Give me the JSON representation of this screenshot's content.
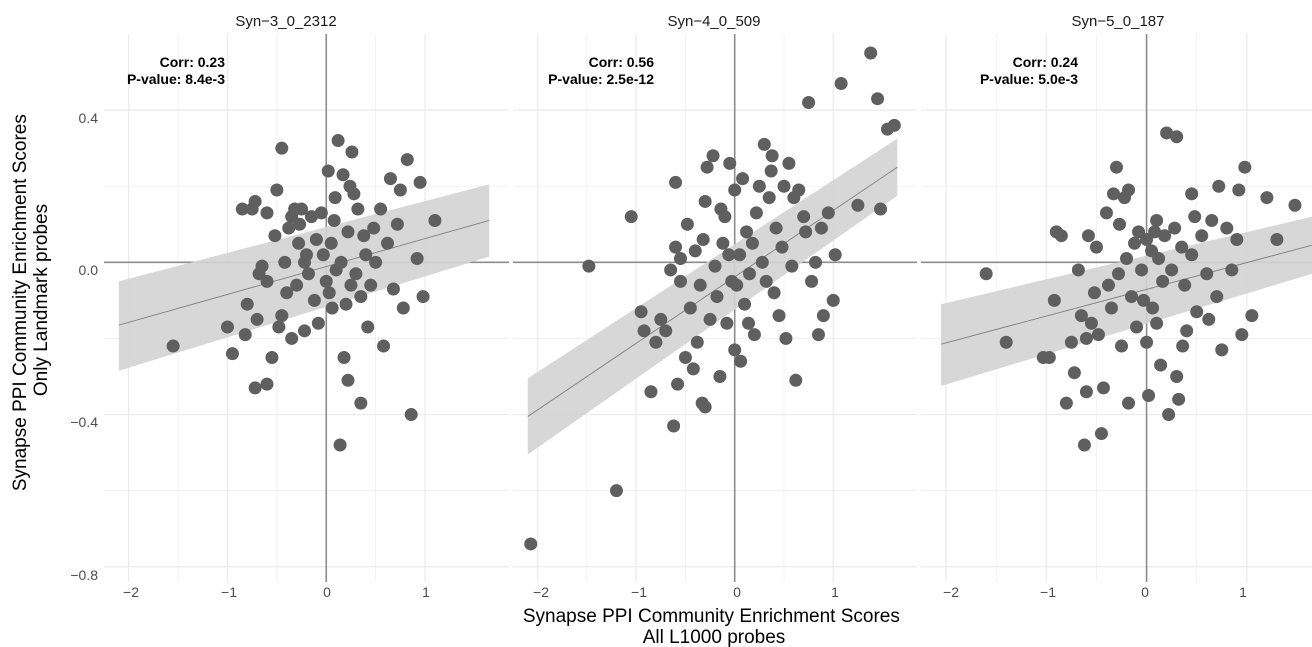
{
  "y_axis_title": [
    "Synapse PPI Community Enrichment Scores",
    "Only Landmark probes"
  ],
  "x_axis_title": [
    "Synapse PPI Community Enrichment Scores",
    "All L1000 probes"
  ],
  "colors": {
    "points": "#5f5f5f",
    "band": "#d3d3d3",
    "fit_line": "#7f7f7f",
    "grid": "#ebebeb",
    "zero_line": "#8c8c8c"
  },
  "chart_data": [
    {
      "type": "scatter",
      "panel": "Syn−3_0_2312",
      "annotation": [
        "Corr: 0.23",
        "P-value: 8.4e-3"
      ],
      "xlim": [
        -2.25,
        1.85
      ],
      "ylim": [
        -0.84,
        0.6
      ],
      "x_ticks": [
        -2,
        -1,
        0,
        1
      ],
      "x_tick_labels": [
        "−2",
        "−1",
        "0",
        "1"
      ],
      "y_ticks": [
        0.4,
        0.0,
        -0.4,
        -0.8
      ],
      "y_tick_labels": [
        "0.4",
        "0.0",
        "−0.4",
        "−0.8"
      ],
      "reference_lines": {
        "x": 0,
        "y": 0
      },
      "fit": {
        "x_range": [
          -2.1,
          1.65
        ],
        "y_start": -0.165,
        "y_end": 0.11,
        "band_low": [
          -0.285,
          0.015
        ],
        "band_high": [
          -0.05,
          0.205
        ]
      },
      "points": [
        [
          -1.55,
          -0.22
        ],
        [
          -0.95,
          -0.24
        ],
        [
          -1.0,
          -0.17
        ],
        [
          -0.82,
          -0.19
        ],
        [
          -0.72,
          -0.33
        ],
        [
          -0.6,
          -0.32
        ],
        [
          -0.55,
          -0.25
        ],
        [
          -0.85,
          0.14
        ],
        [
          -0.75,
          0.14
        ],
        [
          -0.72,
          0.16
        ],
        [
          -0.8,
          -0.11
        ],
        [
          -0.7,
          -0.15
        ],
        [
          -0.68,
          -0.03
        ],
        [
          -0.65,
          -0.01
        ],
        [
          -0.6,
          -0.05
        ],
        [
          -0.52,
          0.07
        ],
        [
          -0.5,
          0.19
        ],
        [
          -0.45,
          0.3
        ],
        [
          -0.48,
          -0.17
        ],
        [
          -0.45,
          -0.14
        ],
        [
          -0.42,
          0.0
        ],
        [
          -0.4,
          -0.08
        ],
        [
          -0.38,
          0.09
        ],
        [
          -0.35,
          0.12
        ],
        [
          -0.35,
          -0.2
        ],
        [
          -0.3,
          -0.06
        ],
        [
          -0.28,
          0.05
        ],
        [
          -0.27,
          0.1
        ],
        [
          -0.25,
          0.14
        ],
        [
          -0.22,
          -0.18
        ],
        [
          -0.2,
          0.02
        ],
        [
          -0.18,
          -0.03
        ],
        [
          -0.15,
          0.12
        ],
        [
          -0.12,
          -0.1
        ],
        [
          -0.1,
          0.06
        ],
        [
          -0.08,
          -0.16
        ],
        [
          -0.05,
          0.13
        ],
        [
          -0.03,
          0.02
        ],
        [
          0.0,
          -0.05
        ],
        [
          0.02,
          0.24
        ],
        [
          0.03,
          -0.08
        ],
        [
          0.05,
          0.05
        ],
        [
          0.08,
          0.11
        ],
        [
          0.1,
          -0.02
        ],
        [
          0.12,
          0.32
        ],
        [
          0.14,
          -0.48
        ],
        [
          0.15,
          0.0
        ],
        [
          0.17,
          0.23
        ],
        [
          0.18,
          -0.25
        ],
        [
          0.2,
          -0.11
        ],
        [
          0.22,
          0.08
        ],
        [
          0.24,
          0.2
        ],
        [
          0.25,
          -0.06
        ],
        [
          0.26,
          0.29
        ],
        [
          0.28,
          0.18
        ],
        [
          0.3,
          -0.03
        ],
        [
          0.32,
          0.14
        ],
        [
          0.35,
          -0.09
        ],
        [
          0.35,
          -0.37
        ],
        [
          0.38,
          0.07
        ],
        [
          0.4,
          0.02
        ],
        [
          0.42,
          -0.17
        ],
        [
          0.45,
          -0.06
        ],
        [
          0.48,
          0.09
        ],
        [
          0.5,
          0.0
        ],
        [
          0.55,
          0.14
        ],
        [
          0.58,
          -0.22
        ],
        [
          0.62,
          0.05
        ],
        [
          0.65,
          0.22
        ],
        [
          0.68,
          -0.07
        ],
        [
          0.72,
          0.1
        ],
        [
          0.75,
          0.19
        ],
        [
          0.78,
          -0.12
        ],
        [
          0.82,
          0.27
        ],
        [
          0.86,
          -0.4
        ],
        [
          0.92,
          0.01
        ],
        [
          0.95,
          0.21
        ],
        [
          0.98,
          -0.09
        ],
        [
          1.1,
          0.11
        ],
        [
          0.22,
          -0.31
        ],
        [
          -0.22,
          0.0
        ],
        [
          -0.32,
          0.14
        ],
        [
          0.06,
          -0.12
        ],
        [
          0.09,
          0.17
        ],
        [
          -0.6,
          0.13
        ]
      ]
    },
    {
      "type": "scatter",
      "panel": "Syn−4_0_509",
      "annotation": [
        "Corr: 0.56",
        "P-value: 2.5e-12"
      ],
      "xlim": [
        -2.25,
        1.85
      ],
      "ylim": [
        -0.84,
        0.6
      ],
      "x_ticks": [
        -2,
        -1,
        0,
        1
      ],
      "x_tick_labels": [
        "−2",
        "−1",
        "0",
        "1"
      ],
      "y_ticks": [
        0.4,
        0.0,
        -0.4,
        -0.8
      ],
      "y_tick_labels": [
        "0.4",
        "0.0",
        "−0.4",
        "−0.8"
      ],
      "reference_lines": {
        "x": 0,
        "y": 0
      },
      "fit": {
        "x_range": [
          -2.1,
          1.65
        ],
        "y_start": -0.405,
        "y_end": 0.25,
        "band_low": [
          -0.505,
          0.175
        ],
        "band_high": [
          -0.305,
          0.325
        ]
      },
      "points": [
        [
          -2.07,
          -0.74
        ],
        [
          -1.2,
          -0.6
        ],
        [
          -1.48,
          -0.01
        ],
        [
          -1.05,
          0.12
        ],
        [
          -0.85,
          -0.34
        ],
        [
          -0.92,
          -0.18
        ],
        [
          -0.95,
          -0.13
        ],
        [
          -0.8,
          -0.21
        ],
        [
          -0.75,
          -0.15
        ],
        [
          -0.7,
          -0.18
        ],
        [
          -0.62,
          -0.43
        ],
        [
          -0.6,
          0.21
        ],
        [
          -0.6,
          0.04
        ],
        [
          -0.58,
          -0.32
        ],
        [
          -0.55,
          -0.05
        ],
        [
          -0.55,
          0.01
        ],
        [
          -0.5,
          -0.25
        ],
        [
          -0.48,
          0.1
        ],
        [
          -0.45,
          -0.12
        ],
        [
          -0.42,
          -0.28
        ],
        [
          -0.4,
          0.03
        ],
        [
          -0.38,
          -0.21
        ],
        [
          -0.35,
          -0.06
        ],
        [
          -0.32,
          0.06
        ],
        [
          -0.3,
          -0.38
        ],
        [
          -0.3,
          0.16
        ],
        [
          -0.28,
          0.25
        ],
        [
          -0.25,
          -0.15
        ],
        [
          -0.22,
          0.28
        ],
        [
          -0.2,
          -0.01
        ],
        [
          -0.18,
          -0.09
        ],
        [
          -0.15,
          -0.3
        ],
        [
          -0.12,
          0.05
        ],
        [
          -0.1,
          0.12
        ],
        [
          -0.08,
          -0.16
        ],
        [
          -0.05,
          0.26
        ],
        [
          -0.03,
          -0.05
        ],
        [
          0.0,
          0.19
        ],
        [
          0.0,
          -0.23
        ],
        [
          0.02,
          -0.06
        ],
        [
          0.05,
          0.02
        ],
        [
          0.06,
          -0.26
        ],
        [
          0.08,
          0.22
        ],
        [
          0.1,
          -0.11
        ],
        [
          0.12,
          0.08
        ],
        [
          0.15,
          -0.03
        ],
        [
          0.18,
          0.05
        ],
        [
          0.2,
          -0.19
        ],
        [
          0.22,
          0.13
        ],
        [
          0.25,
          0.2
        ],
        [
          0.28,
          0.0
        ],
        [
          0.3,
          0.31
        ],
        [
          0.32,
          -0.05
        ],
        [
          0.35,
          0.17
        ],
        [
          0.38,
          0.28
        ],
        [
          0.4,
          -0.08
        ],
        [
          0.42,
          0.09
        ],
        [
          0.45,
          -0.14
        ],
        [
          0.48,
          0.04
        ],
        [
          0.5,
          0.2
        ],
        [
          0.52,
          -0.2
        ],
        [
          0.55,
          0.26
        ],
        [
          0.58,
          -0.01
        ],
        [
          0.6,
          0.17
        ],
        [
          0.62,
          -0.31
        ],
        [
          0.65,
          0.19
        ],
        [
          0.7,
          0.12
        ],
        [
          0.72,
          0.08
        ],
        [
          0.75,
          0.42
        ],
        [
          0.78,
          -0.05
        ],
        [
          0.82,
          0.0
        ],
        [
          0.85,
          -0.19
        ],
        [
          0.88,
          0.09
        ],
        [
          0.9,
          -0.14
        ],
        [
          0.95,
          0.13
        ],
        [
          1.0,
          -0.1
        ],
        [
          1.02,
          0.02
        ],
        [
          1.08,
          0.47
        ],
        [
          1.25,
          0.15
        ],
        [
          1.38,
          0.55
        ],
        [
          1.45,
          0.43
        ],
        [
          1.48,
          0.14
        ],
        [
          1.55,
          0.35
        ],
        [
          1.62,
          0.36
        ],
        [
          -0.65,
          -0.02
        ],
        [
          -0.33,
          -0.37
        ],
        [
          0.14,
          -0.16
        ],
        [
          -0.06,
          0.02
        ],
        [
          0.37,
          0.24
        ],
        [
          -0.14,
          0.14
        ]
      ]
    },
    {
      "type": "scatter",
      "panel": "Syn−5_0_187",
      "annotation": [
        "Corr: 0.24",
        "P-value: 5.0e-3"
      ],
      "xlim": [
        -2.25,
        1.65
      ],
      "ylim": [
        -0.84,
        0.6
      ],
      "x_ticks": [
        -2,
        -1,
        0,
        1
      ],
      "x_tick_labels": [
        "−2",
        "−1",
        "0",
        "1"
      ],
      "y_ticks": [
        0.4,
        0.0,
        -0.4,
        -0.8
      ],
      "y_tick_labels": [
        "0.4",
        "0.0",
        "−0.4",
        "−0.8"
      ],
      "reference_lines": {
        "x": 0,
        "y": 0
      },
      "fit": {
        "x_range": [
          -2.05,
          1.65
        ],
        "y_start": -0.215,
        "y_end": 0.045,
        "band_low": [
          -0.325,
          -0.03
        ],
        "band_high": [
          -0.11,
          0.12
        ]
      },
      "points": [
        [
          -1.6,
          -0.03
        ],
        [
          -1.4,
          -0.21
        ],
        [
          -1.03,
          -0.25
        ],
        [
          -0.97,
          -0.25
        ],
        [
          -0.92,
          -0.1
        ],
        [
          -0.9,
          0.08
        ],
        [
          -0.85,
          0.07
        ],
        [
          -0.8,
          -0.37
        ],
        [
          -0.75,
          -0.21
        ],
        [
          -0.72,
          -0.29
        ],
        [
          -0.68,
          -0.02
        ],
        [
          -0.65,
          -0.14
        ],
        [
          -0.62,
          -0.48
        ],
        [
          -0.6,
          -0.34
        ],
        [
          -0.58,
          0.07
        ],
        [
          -0.55,
          -0.16
        ],
        [
          -0.52,
          -0.08
        ],
        [
          -0.5,
          0.04
        ],
        [
          -0.48,
          -0.19
        ],
        [
          -0.45,
          -0.45
        ],
        [
          -0.43,
          -0.33
        ],
        [
          -0.4,
          0.13
        ],
        [
          -0.38,
          -0.06
        ],
        [
          -0.35,
          -0.12
        ],
        [
          -0.33,
          0.18
        ],
        [
          -0.3,
          0.25
        ],
        [
          -0.28,
          -0.03
        ],
        [
          -0.25,
          -0.22
        ],
        [
          -0.22,
          0.17
        ],
        [
          -0.2,
          0.01
        ],
        [
          -0.18,
          -0.37
        ],
        [
          -0.15,
          -0.09
        ],
        [
          -0.12,
          0.05
        ],
        [
          -0.1,
          -0.17
        ],
        [
          -0.08,
          0.08
        ],
        [
          -0.05,
          -0.02
        ],
        [
          -0.03,
          -0.1
        ],
        [
          0.0,
          0.06
        ],
        [
          0.0,
          -0.21
        ],
        [
          0.02,
          -0.35
        ],
        [
          0.05,
          0.03
        ],
        [
          0.06,
          -0.12
        ],
        [
          0.08,
          0.08
        ],
        [
          0.1,
          -0.16
        ],
        [
          0.12,
          0.01
        ],
        [
          0.14,
          -0.27
        ],
        [
          0.16,
          -0.05
        ],
        [
          0.18,
          0.07
        ],
        [
          0.2,
          0.34
        ],
        [
          0.22,
          -0.4
        ],
        [
          0.25,
          -0.02
        ],
        [
          0.28,
          0.09
        ],
        [
          0.3,
          0.33
        ],
        [
          0.3,
          -0.3
        ],
        [
          0.32,
          -0.36
        ],
        [
          0.35,
          0.04
        ],
        [
          0.38,
          -0.06
        ],
        [
          0.4,
          -0.18
        ],
        [
          0.45,
          0.02
        ],
        [
          0.48,
          0.12
        ],
        [
          0.5,
          -0.13
        ],
        [
          0.55,
          0.07
        ],
        [
          0.6,
          -0.03
        ],
        [
          0.65,
          0.11
        ],
        [
          0.7,
          -0.09
        ],
        [
          0.72,
          0.2
        ],
        [
          0.75,
          -0.23
        ],
        [
          0.8,
          0.09
        ],
        [
          0.85,
          -0.02
        ],
        [
          0.9,
          0.06
        ],
        [
          0.92,
          0.19
        ],
        [
          0.95,
          -0.19
        ],
        [
          0.98,
          0.25
        ],
        [
          1.05,
          -0.14
        ],
        [
          1.2,
          0.17
        ],
        [
          1.3,
          0.06
        ],
        [
          1.48,
          0.15
        ],
        [
          -0.18,
          0.19
        ],
        [
          0.1,
          0.11
        ],
        [
          0.36,
          -0.22
        ],
        [
          -0.6,
          -0.2
        ],
        [
          0.45,
          0.18
        ],
        [
          0.62,
          -0.15
        ],
        [
          -0.27,
          0.1
        ]
      ]
    }
  ]
}
